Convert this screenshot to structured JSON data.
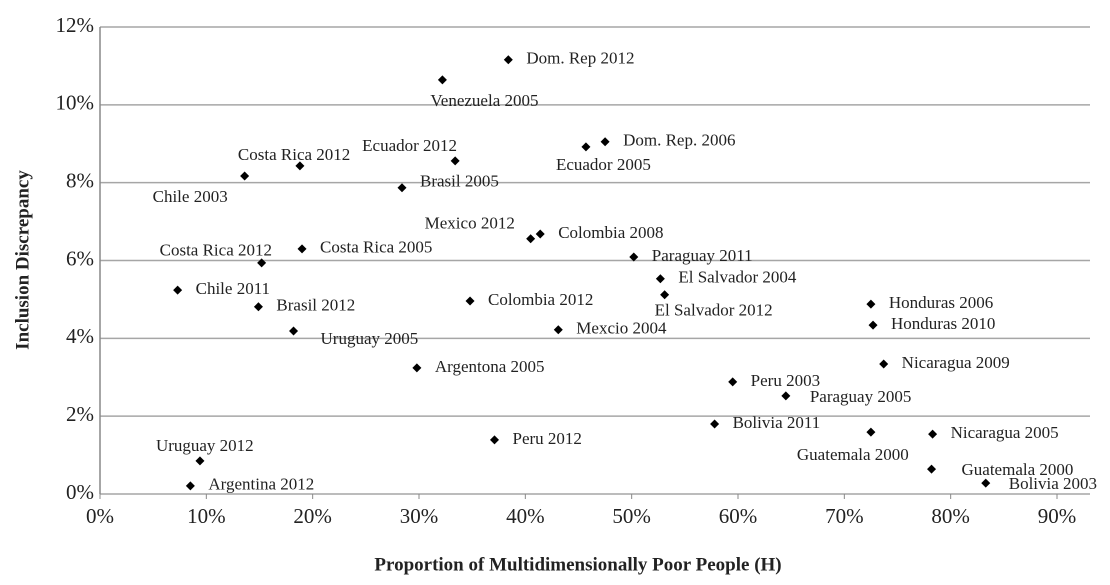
{
  "chart_data": {
    "type": "scatter",
    "xlabel": "Proportion of Multidimensionally Poor People (H)",
    "ylabel": "Inclusion Discrepancy",
    "color": "#000000",
    "grid": true,
    "xlim": [
      0,
      90
    ],
    "ylim": [
      0,
      12
    ],
    "xticks": [
      {
        "value": 0,
        "label": "0%"
      },
      {
        "value": 10,
        "label": "10%"
      },
      {
        "value": 20,
        "label": "20%"
      },
      {
        "value": 30,
        "label": "30%"
      },
      {
        "value": 40,
        "label": "40%"
      },
      {
        "value": 50,
        "label": "50%"
      },
      {
        "value": 60,
        "label": "60%"
      },
      {
        "value": 70,
        "label": "70%"
      },
      {
        "value": 80,
        "label": "80%"
      },
      {
        "value": 90,
        "label": "90%"
      }
    ],
    "yticks": [
      {
        "value": 0,
        "label": "0%"
      },
      {
        "value": 2,
        "label": "2%"
      },
      {
        "value": 4,
        "label": "4%"
      },
      {
        "value": 6,
        "label": "6%"
      },
      {
        "value": 8,
        "label": "8%"
      },
      {
        "value": 10,
        "label": "10%"
      },
      {
        "value": 12,
        "label": "12%"
      }
    ],
    "point_labels": [
      "Dom. Rep 2012",
      "Venezuela 2005",
      "Dom. Rep. 2006",
      "Ecuador 2005",
      "Ecuador 2012",
      "Costa Rica 2012",
      "Chile 2003",
      "Brasil 2005",
      "Mexico 2012",
      "Colombia 2008",
      "Costa Rica 2005",
      "Costa Rica 2012",
      "Paraguay 2011",
      "Chile 2011",
      "El Salvador 2004",
      "El Salvador 2012",
      "Colombia 2012",
      "Brasil 2012",
      "Honduras 2006",
      "Honduras 2010",
      "Uruguay 2005",
      "Mexcio 2004",
      "Nicaragua 2009",
      "Argentona 2005",
      "Peru 2003",
      "Paraguay 2005",
      "Bolivia 2011",
      "Nicaragua 2005",
      "Guatemala 2000",
      "Peru 2012",
      "Uruguay 2012",
      "Guatemala 2000",
      "Bolivia 2003",
      "Argentina 2012"
    ],
    "x": [
      38.4,
      32.2,
      47.5,
      45.7,
      33.4,
      18.8,
      13.6,
      28.4,
      40.5,
      41.4,
      19.0,
      15.2,
      50.2,
      7.3,
      52.7,
      53.1,
      34.8,
      14.9,
      72.5,
      72.7,
      18.2,
      43.1,
      73.7,
      29.8,
      59.5,
      64.5,
      57.8,
      78.3,
      72.5,
      37.1,
      9.4,
      78.2,
      83.3,
      8.5
    ],
    "values": [
      11.16,
      10.64,
      9.05,
      8.92,
      8.56,
      8.43,
      8.17,
      7.87,
      6.56,
      6.68,
      6.3,
      5.94,
      6.09,
      5.24,
      5.53,
      5.12,
      4.96,
      4.81,
      4.88,
      4.34,
      4.19,
      4.22,
      3.34,
      3.24,
      2.88,
      2.52,
      1.8,
      1.54,
      1.59,
      1.39,
      0.85,
      0.64,
      0.28,
      0.21
    ]
  }
}
